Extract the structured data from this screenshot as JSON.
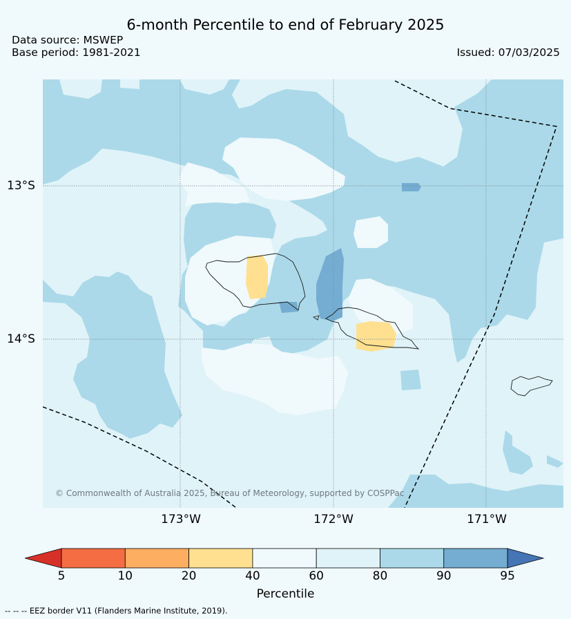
{
  "header": {
    "title": "6-month Percentile to end of February 2025",
    "data_source": "Data source: MSWEP",
    "base_period": "Base period: 1981-2021",
    "issued": "Issued: 07/03/2025"
  },
  "map": {
    "lat_labels": [
      "13°S",
      "14°S"
    ],
    "lon_labels": [
      "173°W",
      "172°W",
      "171°W"
    ],
    "copyright": "© Commonwealth of Australia 2025, Bureau of Meteorology, supported by COSPPac",
    "legend_line": "--  --  -- EEZ border V11 (Flanders Marine Institute, 2019)."
  },
  "colorbar": {
    "label": "Percentile",
    "ticks": [
      "5",
      "10",
      "20",
      "40",
      "60",
      "80",
      "90",
      "95"
    ],
    "colors": [
      "#d73027",
      "#f46d43",
      "#fdae61",
      "#fee090",
      "#f0f9fc",
      "#e0f3f8",
      "#abd9e9",
      "#74add1",
      "#4575b4"
    ]
  }
}
